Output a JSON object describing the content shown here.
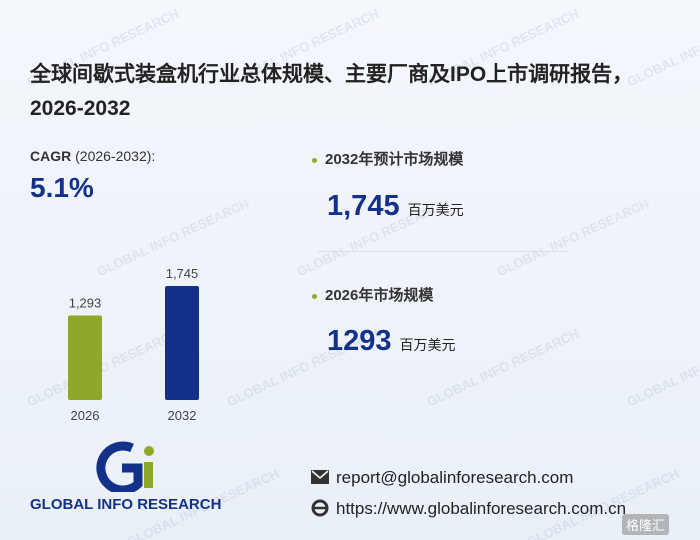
{
  "header": {
    "title": "全球间歇式装盒机行业总体规模、主要厂商及IPO上市调研报告，2026-2032"
  },
  "cagr": {
    "label": "CAGR",
    "period": "(2026-2032):",
    "value": "5.1%"
  },
  "stats": [
    {
      "label": "2032年预计市场规模",
      "value": "1,745",
      "unit": "百万美元"
    },
    {
      "label": "2026年市场规模",
      "value": "1293",
      "unit": "百万美元"
    }
  ],
  "chart_data": {
    "type": "bar",
    "categories": [
      "2026",
      "2032"
    ],
    "values": [
      1293,
      1745
    ],
    "value_labels": [
      "1,293",
      "1,745"
    ],
    "colors": [
      "#8ea92a",
      "#14318a"
    ]
  },
  "logo": {
    "name": "GLOBAL INFO RESEARCH"
  },
  "contact": {
    "email": "report@globalinforesearch.com",
    "website": "https://www.globalinforesearch.com.cn"
  },
  "watermark": "GLOBAL INFO RESEARCH",
  "corner_badge": "格隆汇"
}
